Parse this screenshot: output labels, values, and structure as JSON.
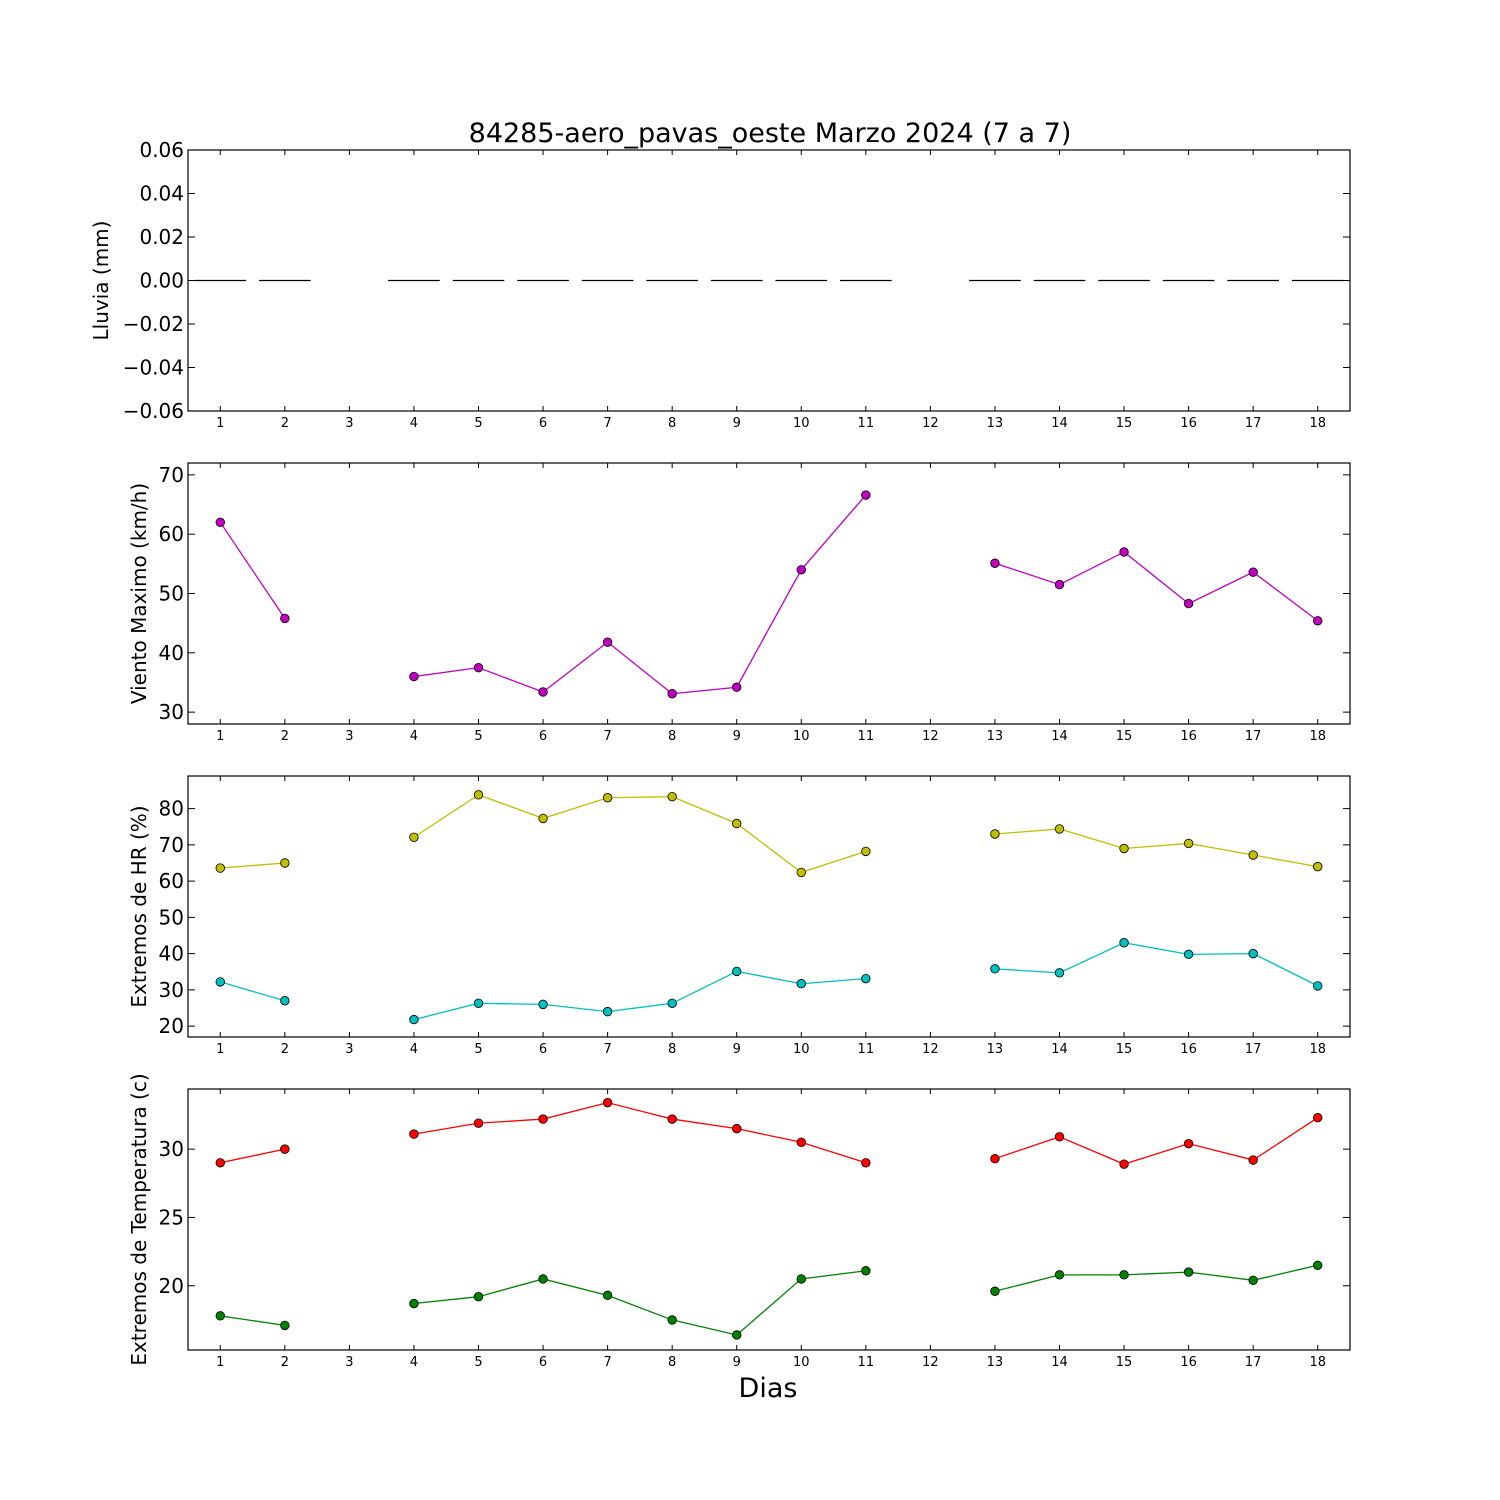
{
  "figure": {
    "title": "84285-aero_pavas_oeste Marzo 2024  (7 a 7)",
    "xlabel": "Dias"
  },
  "chart_data": [
    {
      "type": "line",
      "ylabel": "Lluvia (mm)",
      "ylim": [
        -0.06,
        0.06
      ],
      "yticks": [
        0.06,
        0.04,
        0.02,
        0.0,
        -0.02,
        -0.04,
        -0.06
      ],
      "ytick_labels": [
        "0.06",
        "0.04",
        "0.02",
        "0.00",
        "−0.02",
        "−0.04",
        "−0.06"
      ],
      "xlim": [
        0.5,
        18.5
      ],
      "x": [
        1,
        2,
        3,
        4,
        5,
        6,
        7,
        8,
        9,
        10,
        11,
        12,
        13,
        14,
        15,
        16,
        17,
        18
      ],
      "marker": "hline",
      "series": [
        {
          "color": "#000000",
          "values": [
            0,
            0,
            null,
            0,
            0,
            0,
            0,
            0,
            0,
            0,
            0,
            null,
            0,
            0,
            0,
            0,
            0,
            0
          ]
        }
      ]
    },
    {
      "type": "line",
      "ylabel": "Viento Maximo (km/h)",
      "ylim": [
        28,
        72
      ],
      "yticks": [
        70,
        60,
        50,
        40,
        30
      ],
      "ytick_labels": [
        "70",
        "60",
        "50",
        "40",
        "30"
      ],
      "xlim": [
        0.5,
        18.5
      ],
      "x": [
        1,
        2,
        3,
        4,
        5,
        6,
        7,
        8,
        9,
        10,
        11,
        12,
        13,
        14,
        15,
        16,
        17,
        18
      ],
      "marker": "circle",
      "series": [
        {
          "color": "#bf00bf",
          "values": [
            62.0,
            45.8,
            null,
            36.0,
            37.5,
            33.4,
            41.8,
            33.1,
            34.2,
            54.0,
            66.6,
            null,
            55.1,
            51.5,
            57.0,
            48.3,
            53.6,
            45.4
          ]
        }
      ]
    },
    {
      "type": "line",
      "ylabel": "Extremos de HR (%)",
      "ylim": [
        17,
        89
      ],
      "yticks": [
        80,
        70,
        60,
        50,
        40,
        30,
        20
      ],
      "ytick_labels": [
        "80",
        "70",
        "60",
        "50",
        "40",
        "30",
        "20"
      ],
      "xlim": [
        0.5,
        18.5
      ],
      "x": [
        1,
        2,
        3,
        4,
        5,
        6,
        7,
        8,
        9,
        10,
        11,
        12,
        13,
        14,
        15,
        16,
        17,
        18
      ],
      "marker": "circle",
      "series": [
        {
          "color": "#bfbf00",
          "values": [
            63.6,
            65.0,
            null,
            72.1,
            83.8,
            77.3,
            83.0,
            83.3,
            75.9,
            62.4,
            68.2,
            null,
            73.0,
            74.4,
            69.0,
            70.4,
            67.2,
            64.0
          ]
        },
        {
          "color": "#00bfbf",
          "values": [
            32.2,
            27.0,
            null,
            21.8,
            26.3,
            26.0,
            24.0,
            26.3,
            35.1,
            31.7,
            33.1,
            null,
            35.8,
            34.7,
            43.0,
            39.8,
            40.0,
            31.1
          ]
        }
      ]
    },
    {
      "type": "line",
      "ylabel": "Extremos de Temperatura (c)",
      "ylim": [
        15.3,
        34.4
      ],
      "yticks": [
        30,
        25,
        20
      ],
      "ytick_labels": [
        "30",
        "25",
        "20"
      ],
      "xlim": [
        0.5,
        18.5
      ],
      "x": [
        1,
        2,
        3,
        4,
        5,
        6,
        7,
        8,
        9,
        10,
        11,
        12,
        13,
        14,
        15,
        16,
        17,
        18
      ],
      "marker": "circle",
      "series": [
        {
          "color": "#ff0000",
          "values": [
            29.0,
            30.0,
            null,
            31.1,
            31.9,
            32.2,
            33.4,
            32.2,
            31.5,
            30.5,
            29.0,
            null,
            29.3,
            30.9,
            28.9,
            30.4,
            29.2,
            32.3
          ]
        },
        {
          "color": "#008000",
          "values": [
            17.8,
            17.1,
            null,
            18.7,
            19.2,
            20.5,
            19.3,
            17.5,
            16.4,
            20.5,
            21.1,
            null,
            19.6,
            20.8,
            20.8,
            21.0,
            20.4,
            21.5
          ]
        }
      ]
    }
  ]
}
